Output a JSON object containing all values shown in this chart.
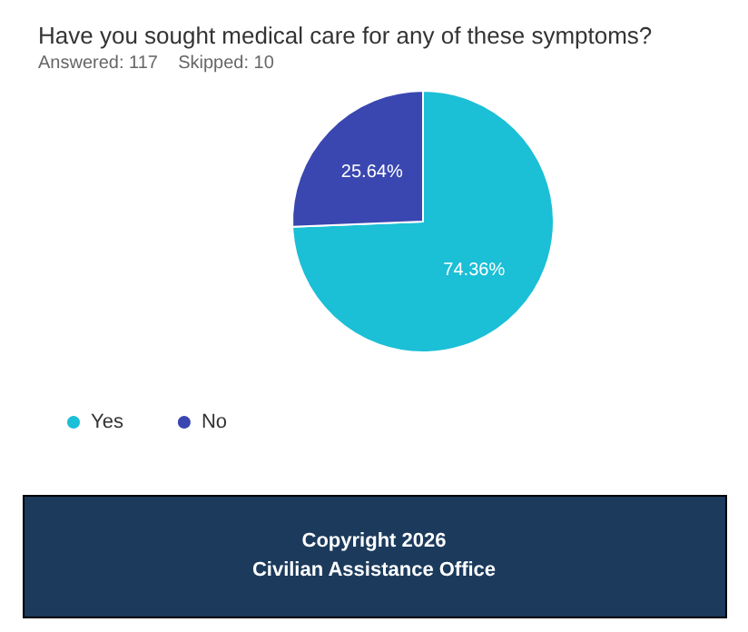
{
  "chart_data": {
    "type": "pie",
    "title": "Have you sought medical care for any of these symptoms?",
    "subtitle": "Answered: 117    Skipped: 10",
    "categories": [
      "Yes",
      "No"
    ],
    "values": [
      74.36,
      25.64
    ],
    "colors": [
      "#1bbfd6",
      "#3a47b0"
    ],
    "value_labels": [
      "74.36%",
      "25.64%"
    ],
    "legend": "bottom left",
    "annotations": [
      "Copyright 2026",
      "Civilian Assistance Office"
    ]
  }
}
